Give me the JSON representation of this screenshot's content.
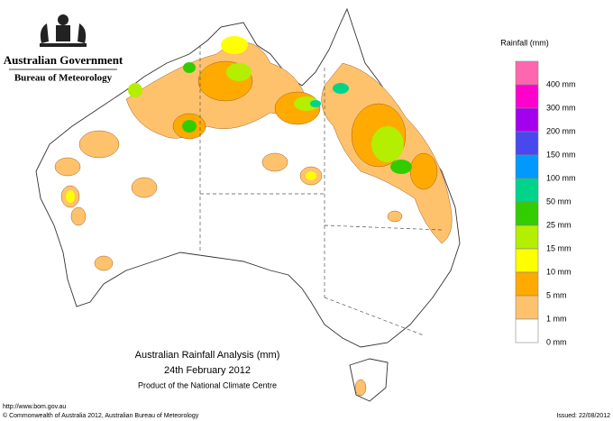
{
  "header": {
    "government": "Australian Government",
    "bureau": "Bureau of Meteorology"
  },
  "legend": {
    "title": "Rainfall (mm)",
    "items": [
      {
        "label": "400 mm",
        "color": "#ff66b0"
      },
      {
        "label": "300 mm",
        "color": "#ff00cc"
      },
      {
        "label": "200 mm",
        "color": "#a400f0"
      },
      {
        "label": "150 mm",
        "color": "#4848ee"
      },
      {
        "label": "100 mm",
        "color": "#0099ff"
      },
      {
        "label": "50 mm",
        "color": "#00d48c"
      },
      {
        "label": "25 mm",
        "color": "#33cc00"
      },
      {
        "label": "15 mm",
        "color": "#b4ee00"
      },
      {
        "label": "10 mm",
        "color": "#ffff00"
      },
      {
        "label": "5 mm",
        "color": "#ffaa00"
      },
      {
        "label": "1 mm",
        "color": "#ffc26c"
      },
      {
        "label": "0 mm",
        "color": "#ffffff"
      }
    ]
  },
  "caption": {
    "title": "Australian Rainfall Analysis (mm)",
    "date": "24th February 2012",
    "source": "Product of the National Climate Centre"
  },
  "footer": {
    "url": "http://www.bom.gov.au",
    "copyright": "© Commonwealth of Australia 2012, Australian Bureau of Meteorology",
    "issued": "Issued: 22/08/2012"
  }
}
